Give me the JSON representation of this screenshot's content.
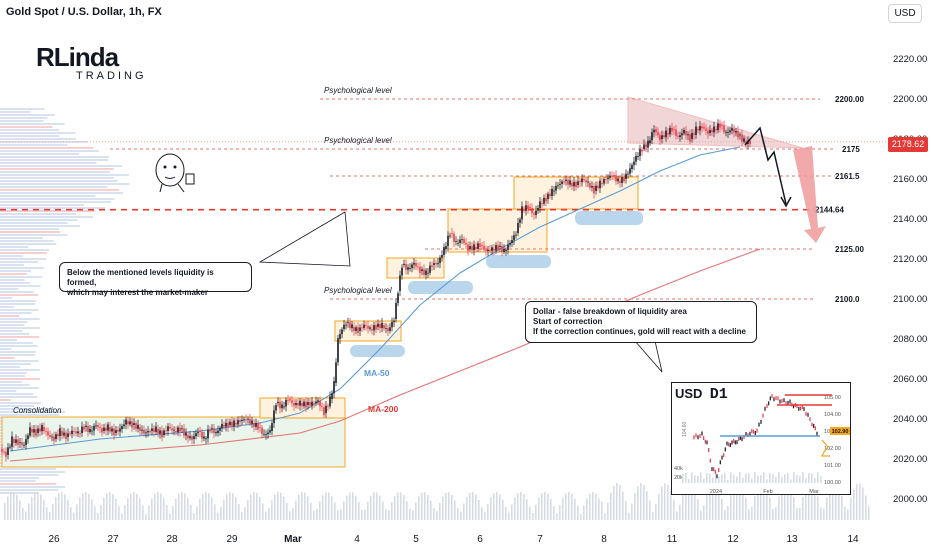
{
  "header": {
    "title": "Gold Spot / U.S. Dollar, 1h, FX",
    "currency": "USD"
  },
  "logo": {
    "brand": "RLinda",
    "sub": "TRADING"
  },
  "price_axis": {
    "ticks": [
      "2220.00",
      "2200.00",
      "2180.00",
      "2160.00",
      "2140.00",
      "2120.00",
      "2100.00",
      "2080.00",
      "2060.00",
      "2040.00",
      "2020.00",
      "2000.00"
    ]
  },
  "time_axis": {
    "ticks": [
      "26",
      "27",
      "28",
      "29",
      "Mar",
      "4",
      "5",
      "6",
      "7",
      "8",
      "11",
      "12",
      "13",
      "14"
    ]
  },
  "current_price": {
    "label": "2178.62",
    "color": "#e53935"
  },
  "levels": [
    {
      "label": "2200.00",
      "value": 2200,
      "caption": "Psychological level"
    },
    {
      "label": "2175",
      "value": 2175,
      "caption": "Psychological level"
    },
    {
      "label": "2161.5",
      "value": 2161.5,
      "caption": ""
    },
    {
      "label": "2144.64",
      "value": 2144.64,
      "caption": ""
    },
    {
      "label": "2125.00",
      "value": 2125,
      "caption": ""
    },
    {
      "label": "2100.0",
      "value": 2100,
      "caption": "Psychological level"
    }
  ],
  "annotations": {
    "consolidation": "Consolidation",
    "ma50": "MA-50",
    "ma200": "MA-200"
  },
  "callouts": {
    "liquidity": [
      "Below the mentioned levels liquidity is formed,",
      "which may interest the market-maker"
    ],
    "dollar": [
      "Dollar - false breakdown of liquidity area",
      "Start of correction",
      "If the correction continues, gold will react with a decline"
    ]
  },
  "inset": {
    "title": "USD",
    "timeframe": "D1",
    "price_ticks": [
      "105.00",
      "104.00",
      "103.00",
      "102.00",
      "101.00",
      "100.00"
    ],
    "price_badge": "102.90",
    "time_ticks": [
      "2024",
      "Feb",
      "Mar"
    ],
    "volume_ticks": [
      "40k",
      "20k"
    ],
    "side_label": "104.60"
  },
  "colors": {
    "up": "#089981",
    "down": "#f23645",
    "candle": "#131722",
    "ma50": "#5b9bd5",
    "ma200": "#e57373",
    "zone": "#f5a623"
  },
  "chart_data": {
    "type": "candlestick",
    "title": "Gold Spot / U.S. Dollar, 1h, FX",
    "ylim": [
      1995,
      2230
    ],
    "x_ticks": [
      "26",
      "27",
      "28",
      "29",
      "Mar",
      "4",
      "5",
      "6",
      "7",
      "8",
      "11",
      "12",
      "13",
      "14"
    ],
    "levels": [
      2200,
      2175,
      2161.5,
      2144.64,
      2125,
      2100
    ],
    "last_price": 2178.62,
    "path": [
      [
        0,
        2025
      ],
      [
        6,
        2022
      ],
      [
        12,
        2030
      ],
      [
        18,
        2028
      ],
      [
        24,
        2027
      ],
      [
        30,
        2035
      ],
      [
        36,
        2033
      ],
      [
        42,
        2036
      ],
      [
        48,
        2032
      ],
      [
        54,
        2030
      ],
      [
        60,
        2034
      ],
      [
        66,
        2031
      ],
      [
        72,
        2034
      ],
      [
        78,
        2033
      ],
      [
        84,
        2036
      ],
      [
        90,
        2034
      ],
      [
        96,
        2037
      ],
      [
        102,
        2034
      ],
      [
        108,
        2036
      ],
      [
        114,
        2033
      ],
      [
        120,
        2035
      ],
      [
        126,
        2039
      ],
      [
        132,
        2037
      ],
      [
        138,
        2036
      ],
      [
        144,
        2033
      ],
      [
        150,
        2034
      ],
      [
        156,
        2035
      ],
      [
        162,
        2032
      ],
      [
        168,
        2036
      ],
      [
        174,
        2034
      ],
      [
        180,
        2035
      ],
      [
        186,
        2032
      ],
      [
        192,
        2030
      ],
      [
        198,
        2034
      ],
      [
        204,
        2030
      ],
      [
        210,
        2035
      ],
      [
        216,
        2033
      ],
      [
        222,
        2037
      ],
      [
        228,
        2037
      ],
      [
        234,
        2038
      ],
      [
        240,
        2039
      ],
      [
        246,
        2040
      ],
      [
        252,
        2038
      ],
      [
        258,
        2036
      ],
      [
        264,
        2032
      ],
      [
        270,
        2034
      ],
      [
        276,
        2048
      ],
      [
        282,
        2046
      ],
      [
        288,
        2050
      ],
      [
        294,
        2047
      ],
      [
        300,
        2048
      ],
      [
        306,
        2047
      ],
      [
        312,
        2048
      ],
      [
        318,
        2049
      ],
      [
        324,
        2043
      ],
      [
        330,
        2050
      ],
      [
        334,
        2058
      ],
      [
        338,
        2080
      ],
      [
        342,
        2085
      ],
      [
        346,
        2088
      ],
      [
        352,
        2086
      ],
      [
        358,
        2084
      ],
      [
        364,
        2087
      ],
      [
        370,
        2085
      ],
      [
        376,
        2086
      ],
      [
        382,
        2087
      ],
      [
        388,
        2084
      ],
      [
        394,
        2090
      ],
      [
        398,
        2104
      ],
      [
        402,
        2117
      ],
      [
        408,
        2115
      ],
      [
        414,
        2118
      ],
      [
        420,
        2114
      ],
      [
        426,
        2113
      ],
      [
        432,
        2117
      ],
      [
        438,
        2118
      ],
      [
        444,
        2125
      ],
      [
        450,
        2133
      ],
      [
        456,
        2128
      ],
      [
        462,
        2130
      ],
      [
        468,
        2125
      ],
      [
        474,
        2126
      ],
      [
        480,
        2127
      ],
      [
        486,
        2124
      ],
      [
        492,
        2125
      ],
      [
        498,
        2126
      ],
      [
        504,
        2124
      ],
      [
        510,
        2128
      ],
      [
        516,
        2133
      ],
      [
        522,
        2145
      ],
      [
        528,
        2146
      ],
      [
        534,
        2142
      ],
      [
        540,
        2148
      ],
      [
        546,
        2150
      ],
      [
        552,
        2154
      ],
      [
        558,
        2157
      ],
      [
        564,
        2159
      ],
      [
        570,
        2158
      ],
      [
        576,
        2157
      ],
      [
        582,
        2160
      ],
      [
        588,
        2158
      ],
      [
        594,
        2154
      ],
      [
        600,
        2158
      ],
      [
        606,
        2160
      ],
      [
        612,
        2162
      ],
      [
        618,
        2159
      ],
      [
        624,
        2160
      ],
      [
        630,
        2165
      ],
      [
        636,
        2171
      ],
      [
        642,
        2175
      ],
      [
        648,
        2178
      ],
      [
        654,
        2185
      ],
      [
        660,
        2180
      ],
      [
        666,
        2183
      ],
      [
        672,
        2185
      ],
      [
        678,
        2181
      ],
      [
        684,
        2184
      ],
      [
        690,
        2180
      ],
      [
        696,
        2185
      ],
      [
        702,
        2186
      ],
      [
        708,
        2183
      ],
      [
        714,
        2185
      ],
      [
        720,
        2187
      ],
      [
        726,
        2183
      ],
      [
        732,
        2185
      ],
      [
        738,
        2182
      ],
      [
        744,
        2179
      ],
      [
        750,
        2178
      ]
    ],
    "series": [
      {
        "name": "MA-50",
        "x": [
          10,
          100,
          200,
          260,
          300,
          340,
          380,
          420,
          460,
          500,
          540,
          580,
          620,
          660,
          700,
          740
        ],
        "y": [
          2024,
          2030,
          2034,
          2038,
          2043,
          2055,
          2075,
          2097,
          2113,
          2125,
          2136,
          2145,
          2154,
          2164,
          2172,
          2176
        ]
      },
      {
        "name": "MA-200",
        "x": [
          10,
          100,
          200,
          300,
          340,
          400,
          460,
          520,
          580,
          640,
          700,
          760
        ],
        "y": [
          2019,
          2023,
          2027,
          2033,
          2039,
          2052,
          2064,
          2076,
          2089,
          2102,
          2114,
          2125
        ]
      }
    ]
  }
}
